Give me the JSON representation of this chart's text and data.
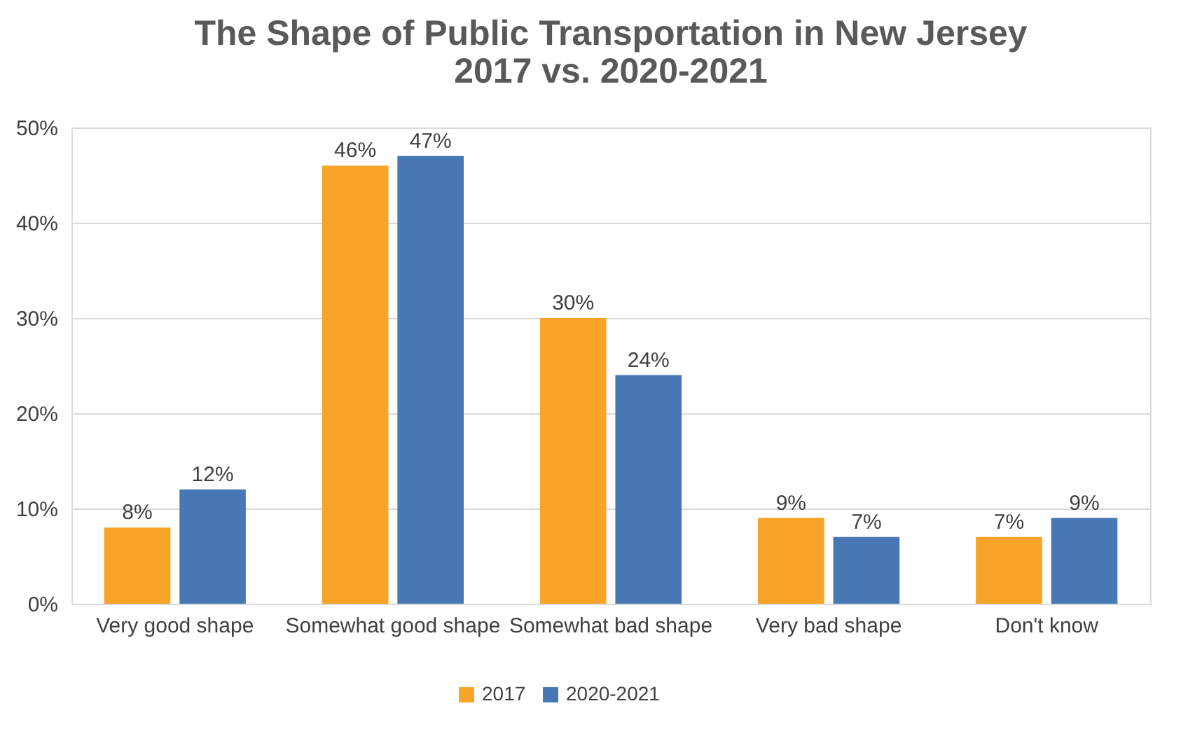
{
  "chart_data": {
    "type": "bar",
    "title": "The Shape of Public Transportation in New Jersey\n2017 vs. 2020-2021",
    "categories": [
      "Very good shape",
      "Somewhat good shape",
      "Somewhat bad shape",
      "Very bad shape",
      "Don't know"
    ],
    "series": [
      {
        "name": "2017",
        "color": "#f7a428",
        "values": [
          8,
          46,
          30,
          9,
          7
        ],
        "value_labels": [
          "8%",
          "46%",
          "30%",
          "9%",
          "7%"
        ]
      },
      {
        "name": "2020-2021",
        "color": "#4878b4",
        "values": [
          12,
          47,
          24,
          7,
          9
        ],
        "value_labels": [
          "12%",
          "47%",
          "24%",
          "7%",
          "9%"
        ]
      }
    ],
    "ylim": [
      0,
      50
    ],
    "yticks": [
      {
        "value": 0,
        "label": "0%"
      },
      {
        "value": 10,
        "label": "10%"
      },
      {
        "value": 20,
        "label": "20%"
      },
      {
        "value": 30,
        "label": "30%"
      },
      {
        "value": 40,
        "label": "40%"
      },
      {
        "value": 50,
        "label": "50%"
      }
    ],
    "grid": "y",
    "legend": "bottom"
  }
}
